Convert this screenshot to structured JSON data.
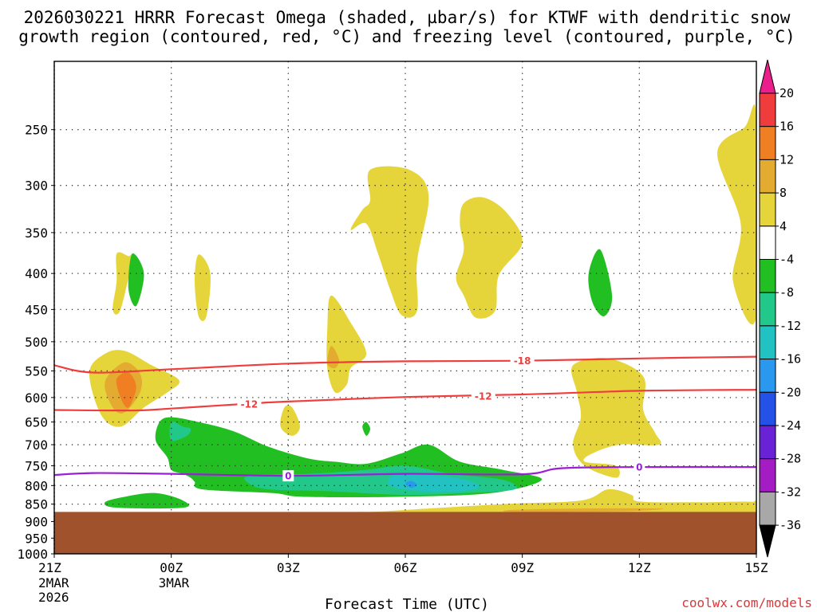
{
  "chart_data": {
    "type": "contour",
    "title_line1": "2026030221 HRRR Forecast Omega (shaded, µbar/s) for KTWF with dendritic snow",
    "title_line2": "growth region (contoured, red, °C) and freezing level (contoured, purple, °C)",
    "xlabel": "Forecast Time (UTC)",
    "ylabel": "",
    "x_ticks": [
      {
        "hour": 0,
        "label": "21Z",
        "sub1": "2MAR",
        "sub2": "2026"
      },
      {
        "hour": 3,
        "label": "00Z",
        "sub1": "3MAR",
        "sub2": ""
      },
      {
        "hour": 6,
        "label": "03Z",
        "sub1": "",
        "sub2": ""
      },
      {
        "hour": 9,
        "label": "06Z",
        "sub1": "",
        "sub2": ""
      },
      {
        "hour": 12,
        "label": "09Z",
        "sub1": "",
        "sub2": ""
      },
      {
        "hour": 15,
        "label": "12Z",
        "sub1": "",
        "sub2": ""
      },
      {
        "hour": 18,
        "label": "15Z",
        "sub1": "",
        "sub2": ""
      }
    ],
    "x_range_hours": [
      0,
      18
    ],
    "y_ticks": [
      250,
      300,
      350,
      400,
      450,
      500,
      550,
      600,
      650,
      700,
      750,
      800,
      850,
      900,
      950,
      1000
    ],
    "y_range_hPa": [
      1000,
      200
    ],
    "colorbar": {
      "tick_labels": [
        "20",
        "16",
        "12",
        "8",
        "4",
        "-4",
        "-8",
        "-12",
        "-16",
        "-20",
        "-24",
        "-28",
        "-32",
        "-36"
      ],
      "colors": [
        "#ea1f8c",
        "#f03c3c",
        "#ef7f22",
        "#e3ab2f",
        "#e6d53a",
        "#ffffff",
        "#22bf22",
        "#21c889",
        "#22c2c2",
        "#2a98ee",
        "#2451e7",
        "#6a22d6",
        "#a41dc4",
        "#a8a8a8",
        "#000000"
      ]
    },
    "ground_color": "#a0522d",
    "surface_pressure_hPa": 872,
    "contours": [
      {
        "name": "dgz-top",
        "label": "-18",
        "color": "#ee3e3e",
        "points": [
          [
            0,
            540
          ],
          [
            1,
            553
          ],
          [
            3,
            547
          ],
          [
            6,
            537
          ],
          [
            9,
            533
          ],
          [
            12,
            532
          ],
          [
            15,
            528
          ],
          [
            18,
            525
          ]
        ],
        "label_at": [
          12,
          532
        ]
      },
      {
        "name": "dgz-bottom",
        "label": "-12",
        "color": "#ee3e3e",
        "points": [
          [
            0,
            625
          ],
          [
            2,
            626
          ],
          [
            3,
            622
          ],
          [
            5,
            612
          ],
          [
            6,
            608
          ],
          [
            9,
            599
          ],
          [
            12,
            594
          ],
          [
            15,
            587
          ],
          [
            18,
            585
          ]
        ],
        "label_at": [
          5,
          613
        ],
        "label2_at": [
          11,
          597
        ]
      },
      {
        "name": "freezing-level",
        "label": "0",
        "color": "#9a1fd6",
        "points": [
          [
            0,
            773
          ],
          [
            1,
            768
          ],
          [
            3,
            770
          ],
          [
            6,
            775
          ],
          [
            9,
            770
          ],
          [
            12,
            771
          ],
          [
            13,
            756
          ],
          [
            15,
            753
          ],
          [
            18,
            753
          ]
        ],
        "label_at": [
          6,
          775
        ],
        "label2_at": [
          15,
          753
        ]
      }
    ],
    "shaded_regions": [
      {
        "name": "upper-right",
        "value": 4,
        "color": "#e6d53a",
        "points": [
          [
            17.7,
            248
          ],
          [
            18,
            240
          ],
          [
            18,
            460
          ],
          [
            17.4,
            410
          ],
          [
            17.6,
            340
          ],
          [
            17.0,
            270
          ]
        ]
      },
      {
        "name": "upper-a",
        "value": 4,
        "color": "#e6d53a",
        "points": [
          [
            8.1,
            285
          ],
          [
            9.1,
            285
          ],
          [
            9.6,
            310
          ],
          [
            9.3,
            385
          ],
          [
            9.3,
            452
          ],
          [
            8.9,
            458
          ],
          [
            8.6,
            420
          ],
          [
            8.3,
            375
          ],
          [
            8.0,
            340
          ],
          [
            7.6,
            347
          ],
          [
            7.9,
            325
          ],
          [
            8.1,
            315
          ]
        ]
      },
      {
        "name": "upper-b",
        "value": 4,
        "color": "#e6d53a",
        "points": [
          [
            10.5,
            318
          ],
          [
            11.0,
            312
          ],
          [
            11.6,
            328
          ],
          [
            12.0,
            362
          ],
          [
            11.4,
            402
          ],
          [
            11.3,
            452
          ],
          [
            10.8,
            462
          ],
          [
            10.5,
            430
          ],
          [
            10.3,
            405
          ],
          [
            10.5,
            370
          ],
          [
            10.4,
            340
          ]
        ]
      },
      {
        "name": "small-a",
        "value": 4,
        "color": "#e6d53a",
        "points": [
          [
            1.6,
            375
          ],
          [
            1.9,
            378
          ],
          [
            2.0,
            380
          ],
          [
            1.7,
            450
          ],
          [
            1.5,
            450
          ],
          [
            1.6,
            410
          ]
        ]
      },
      {
        "name": "small-b",
        "value": 4,
        "color": "#e6d53a",
        "points": [
          [
            3.7,
            376
          ],
          [
            4.0,
            400
          ],
          [
            3.9,
            460
          ],
          [
            3.7,
            460
          ],
          [
            3.6,
            410
          ]
        ]
      },
      {
        "name": "mid-plume",
        "value": 4,
        "color": "#e6d53a",
        "points": [
          [
            7.1,
            430
          ],
          [
            7.6,
            470
          ],
          [
            8.0,
            520
          ],
          [
            7.6,
            545
          ],
          [
            7.5,
            575
          ],
          [
            7.2,
            590
          ],
          [
            7.0,
            545
          ],
          [
            7.0,
            480
          ]
        ]
      },
      {
        "name": "mid-plume-core",
        "value": 8,
        "color": "#e3ab2f",
        "points": [
          [
            7.1,
            507
          ],
          [
            7.3,
            530
          ],
          [
            7.2,
            545
          ],
          [
            7.0,
            537
          ]
        ]
      },
      {
        "name": "left-warm",
        "value": 4,
        "color": "#e6d53a",
        "points": [
          [
            0.9,
            553
          ],
          [
            1.3,
            520
          ],
          [
            1.8,
            515
          ],
          [
            2.5,
            540
          ],
          [
            3.2,
            567
          ],
          [
            2.9,
            590
          ],
          [
            2.3,
            620
          ],
          [
            1.7,
            660
          ],
          [
            1.2,
            635
          ]
        ]
      },
      {
        "name": "left-warm-8",
        "value": 8,
        "color": "#e3ab2f",
        "points": [
          [
            1.3,
            570
          ],
          [
            1.8,
            535
          ],
          [
            2.2,
            555
          ],
          [
            2.2,
            590
          ],
          [
            1.8,
            630
          ],
          [
            1.5,
            620
          ]
        ]
      },
      {
        "name": "left-warm-12",
        "value": 12,
        "color": "#ef7f22",
        "points": [
          [
            1.6,
            565
          ],
          [
            1.9,
            553
          ],
          [
            2.1,
            580
          ],
          [
            1.9,
            620
          ],
          [
            1.7,
            600
          ]
        ]
      },
      {
        "name": "right-warm",
        "value": 4,
        "color": "#e6d53a",
        "points": [
          [
            13.3,
            540
          ],
          [
            14.2,
            528
          ],
          [
            15.1,
            560
          ],
          [
            15.1,
            625
          ],
          [
            15.4,
            673
          ],
          [
            15.5,
            700
          ],
          [
            14.5,
            700
          ],
          [
            13.8,
            720
          ],
          [
            13.6,
            740
          ],
          [
            14.4,
            750
          ],
          [
            14.4,
            780
          ],
          [
            13.6,
            750
          ],
          [
            13.3,
            700
          ],
          [
            13.5,
            640
          ],
          [
            13.4,
            590
          ]
        ]
      },
      {
        "name": "small-c",
        "value": 4,
        "color": "#e6d53a",
        "points": [
          [
            5.9,
            620
          ],
          [
            6.1,
            620
          ],
          [
            6.3,
            660
          ],
          [
            6.1,
            680
          ],
          [
            5.8,
            660
          ]
        ]
      },
      {
        "name": "small-d",
        "value": -4,
        "color": "#22bf22",
        "points": [
          [
            1.9,
            420
          ],
          [
            2.0,
            375
          ],
          [
            2.3,
            400
          ],
          [
            2.1,
            445
          ]
        ]
      },
      {
        "name": "small-e",
        "value": -4,
        "color": "#22bf22",
        "points": [
          [
            13.7,
            400
          ],
          [
            14.0,
            370
          ],
          [
            14.3,
            430
          ],
          [
            14.1,
            460
          ],
          [
            13.8,
            440
          ]
        ]
      },
      {
        "name": "small-f",
        "value": -4,
        "color": "#22bf22",
        "points": [
          [
            7.9,
            660
          ],
          [
            8.0,
            650
          ],
          [
            8.1,
            665
          ],
          [
            8.0,
            680
          ]
        ]
      },
      {
        "name": "low-green",
        "value": -4,
        "color": "#22bf22",
        "points": [
          [
            2.7,
            650
          ],
          [
            3.0,
            640
          ],
          [
            3.7,
            650
          ],
          [
            4.6,
            670
          ],
          [
            5.5,
            705
          ],
          [
            6.5,
            732
          ],
          [
            7.2,
            740
          ],
          [
            8.0,
            745
          ],
          [
            8.9,
            720
          ],
          [
            9.6,
            700
          ],
          [
            10.4,
            740
          ],
          [
            11.5,
            760
          ],
          [
            12.5,
            785
          ],
          [
            11.2,
            820
          ],
          [
            8.8,
            830
          ],
          [
            6.4,
            830
          ],
          [
            5.6,
            820
          ],
          [
            3.8,
            810
          ],
          [
            3.6,
            790
          ],
          [
            3.5,
            780
          ],
          [
            3.3,
            770
          ],
          [
            3.0,
            760
          ],
          [
            2.9,
            730
          ],
          [
            2.6,
            690
          ]
        ]
      },
      {
        "name": "low-green-left",
        "value": -4,
        "color": "#22bf22",
        "points": [
          [
            1.3,
            845
          ],
          [
            1.8,
            830
          ],
          [
            2.6,
            820
          ],
          [
            3.3,
            840
          ],
          [
            3.3,
            860
          ],
          [
            1.6,
            860
          ]
        ]
      },
      {
        "name": "low-green-cyan",
        "value": -8,
        "color": "#21c889",
        "points": [
          [
            3.0,
            650
          ],
          [
            3.3,
            660
          ],
          [
            3.5,
            665
          ],
          [
            3.4,
            680
          ],
          [
            3.0,
            690
          ]
        ]
      },
      {
        "name": "low-cyan",
        "value": -8,
        "color": "#21c889",
        "points": [
          [
            5.0,
            775
          ],
          [
            6.5,
            770
          ],
          [
            8.0,
            760
          ],
          [
            9.0,
            750
          ],
          [
            10.2,
            770
          ],
          [
            11.5,
            785
          ],
          [
            11.8,
            810
          ],
          [
            10.5,
            820
          ],
          [
            9.0,
            825
          ],
          [
            7.0,
            815
          ],
          [
            5.5,
            810
          ],
          [
            5.0,
            795
          ]
        ]
      },
      {
        "name": "low-teal",
        "value": -12,
        "color": "#22c2c2",
        "points": [
          [
            8.7,
            772
          ],
          [
            9.2,
            770
          ],
          [
            10.3,
            780
          ],
          [
            10.9,
            800
          ],
          [
            10.5,
            815
          ],
          [
            9.4,
            815
          ],
          [
            8.6,
            800
          ]
        ]
      },
      {
        "name": "low-blue",
        "value": -16,
        "color": "#2a98ee",
        "points": [
          [
            9.0,
            795
          ],
          [
            9.15,
            788
          ],
          [
            9.3,
            798
          ],
          [
            9.15,
            806
          ]
        ]
      },
      {
        "name": "surface-warm",
        "value": 4,
        "color": "#e6d53a",
        "points": [
          [
            8.5,
            870
          ],
          [
            11.5,
            850
          ],
          [
            13.5,
            840
          ],
          [
            14.2,
            810
          ],
          [
            14.8,
            825
          ],
          [
            15.0,
            843
          ],
          [
            16.5,
            845
          ],
          [
            18.0,
            845
          ],
          [
            18.0,
            872
          ],
          [
            8.5,
            872
          ]
        ]
      },
      {
        "name": "surface-warm-8",
        "value": 8,
        "color": "#e3ab2f",
        "points": [
          [
            11.8,
            866
          ],
          [
            13.8,
            862
          ],
          [
            15.6,
            863
          ],
          [
            14.6,
            870
          ],
          [
            11.8,
            872
          ]
        ]
      },
      {
        "name": "surface-right-tip",
        "value": 4,
        "color": "#e6d53a",
        "points": [
          [
            17.8,
            855
          ],
          [
            18.0,
            840
          ],
          [
            18.0,
            862
          ],
          [
            17.8,
            862
          ]
        ]
      }
    ]
  },
  "footer": {
    "credit": "coolwx.com/models"
  }
}
